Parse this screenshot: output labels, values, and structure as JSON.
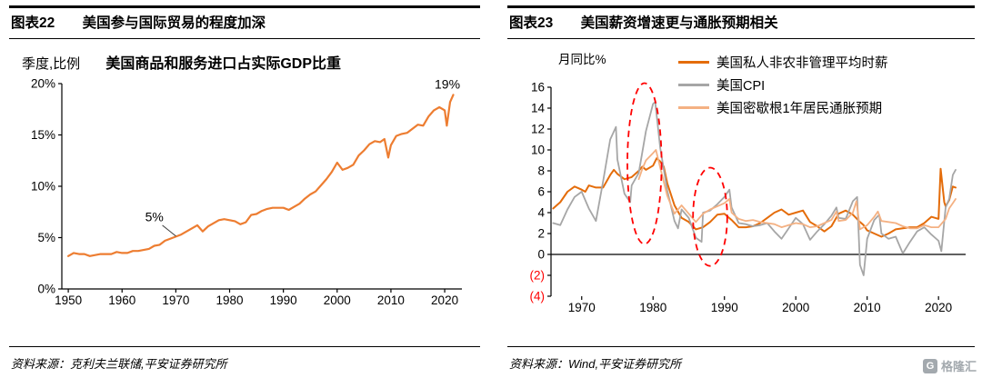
{
  "page": {
    "background": "#ffffff"
  },
  "panels": {
    "left": {
      "fig_no": "图表22",
      "title": "美国参与国际贸易的程度加深",
      "source": "资料来源：克利夫兰联储,平安证券研究所"
    },
    "right": {
      "fig_no": "图表23",
      "title": "美国薪资增速更与通胀预期相关",
      "source": "资料来源：Wind,平安证券研究所"
    }
  },
  "logo": {
    "icon": "G",
    "text": "格隆汇"
  },
  "chart_data": [
    {
      "type": "line",
      "title": "美国商品和服务进口占实际GDP比重",
      "unit_label": "季度,比例",
      "xlabel": "",
      "ylabel": "",
      "grid": false,
      "legend_position": "none",
      "xlim": [
        1948.8,
        2023.2
      ],
      "ylim": [
        0,
        20
      ],
      "x_axis_at": 0,
      "margin": {
        "l": 58,
        "r": 20,
        "t": 12,
        "b": 42
      },
      "xticks": [
        {
          "v": 1950,
          "label": "1950"
        },
        {
          "v": 1960,
          "label": "1960"
        },
        {
          "v": 1970,
          "label": "1970"
        },
        {
          "v": 1980,
          "label": "1980"
        },
        {
          "v": 1990,
          "label": "1990"
        },
        {
          "v": 2000,
          "label": "2000"
        },
        {
          "v": 2010,
          "label": "2010"
        },
        {
          "v": 2020,
          "label": "2020"
        }
      ],
      "yticks": [
        {
          "v": 0,
          "label": "0%"
        },
        {
          "v": 5,
          "label": "5%"
        },
        {
          "v": 10,
          "label": "10%"
        },
        {
          "v": 15,
          "label": "15%"
        },
        {
          "v": 20,
          "label": "20%"
        }
      ],
      "series": [
        {
          "name": "美国商品和服务进口占实际GDP比重",
          "color": "#ED7D31",
          "width": 2.2,
          "x": [
            1950,
            1951,
            1952,
            1953,
            1954,
            1955,
            1956,
            1957,
            1958,
            1959,
            1960,
            1961,
            1962,
            1963,
            1964,
            1965,
            1966,
            1967,
            1968,
            1969,
            1970,
            1971,
            1972,
            1973,
            1974,
            1975,
            1976,
            1977,
            1978,
            1979,
            1980,
            1981,
            1982,
            1983,
            1984,
            1985,
            1986,
            1987,
            1988,
            1989,
            1990,
            1991,
            1992,
            1993,
            1994,
            1995,
            1996,
            1997,
            1998,
            1999,
            2000,
            2001,
            2002,
            2003,
            2004,
            2005,
            2006,
            2007,
            2008,
            2008.8,
            2009.5,
            2010,
            2011,
            2012,
            2013,
            2014,
            2015,
            2016,
            2017,
            2018,
            2019,
            2020,
            2020.4,
            2021,
            2021.6
          ],
          "values": [
            3.2,
            3.5,
            3.4,
            3.4,
            3.2,
            3.3,
            3.4,
            3.4,
            3.4,
            3.6,
            3.5,
            3.5,
            3.7,
            3.7,
            3.8,
            3.9,
            4.2,
            4.3,
            4.7,
            4.9,
            5.1,
            5.3,
            5.6,
            5.9,
            6.2,
            5.6,
            6.1,
            6.4,
            6.7,
            6.8,
            6.7,
            6.6,
            6.3,
            6.5,
            7.2,
            7.3,
            7.6,
            7.8,
            7.9,
            7.9,
            7.9,
            7.7,
            8.0,
            8.3,
            8.8,
            9.2,
            9.5,
            10.1,
            10.7,
            11.4,
            12.3,
            11.6,
            11.8,
            12.1,
            13.0,
            13.5,
            14.1,
            14.4,
            14.3,
            14.6,
            12.8,
            14.0,
            14.9,
            15.1,
            15.2,
            15.6,
            16.0,
            15.9,
            16.8,
            17.4,
            17.7,
            17.4,
            15.9,
            18.2,
            18.9
          ]
        }
      ],
      "annotations": [
        {
          "text": "5%",
          "x": 1966,
          "y": 6.6,
          "anchor": "middle",
          "line": [
            1967.5,
            6.2,
            1970,
            5.15
          ]
        },
        {
          "text": "19%",
          "x": 2020.5,
          "y": 19.5,
          "anchor": "middle"
        }
      ]
    },
    {
      "type": "line",
      "title": "美国薪资增速更与通胀预期相关",
      "xlabel": "",
      "ylabel": "月同比%",
      "grid": false,
      "legend_position": "top-right",
      "xlim": [
        1965.7,
        2023.8
      ],
      "ylim": [
        -4,
        16
      ],
      "x_axis_at": 0,
      "margin": {
        "l": 48,
        "r": 10,
        "t": 47,
        "b": 31
      },
      "xticks": [
        {
          "v": 1970,
          "label": "1970"
        },
        {
          "v": 1980,
          "label": "1980"
        },
        {
          "v": 1990,
          "label": "1990"
        },
        {
          "v": 2000,
          "label": "2000"
        },
        {
          "v": 2010,
          "label": "2010"
        },
        {
          "v": 2020,
          "label": "2020"
        }
      ],
      "yticks": [
        {
          "v": 16,
          "label": "16"
        },
        {
          "v": 14,
          "label": "14"
        },
        {
          "v": 12,
          "label": "12"
        },
        {
          "v": 10,
          "label": "10"
        },
        {
          "v": 8,
          "label": "8"
        },
        {
          "v": 6,
          "label": "6"
        },
        {
          "v": 4,
          "label": "4"
        },
        {
          "v": 2,
          "label": "2"
        },
        {
          "v": 0,
          "label": "0"
        },
        {
          "v": -2,
          "label": "(2)",
          "color": "#FF0000"
        },
        {
          "v": -4,
          "label": "(4)",
          "color": "#FF0000"
        }
      ],
      "series": [
        {
          "name": "美国私人非农非管理平均时薪",
          "color": "#E46C0A",
          "width": 2,
          "x": [
            1966,
            1967,
            1968,
            1969,
            1970,
            1970.5,
            1971,
            1972,
            1973,
            1974,
            1974.5,
            1975,
            1976,
            1977,
            1978,
            1978.5,
            1979,
            1980,
            1980.5,
            1981,
            1981.5,
            1982,
            1983,
            1984,
            1985,
            1986,
            1987,
            1988,
            1989,
            1990,
            1991,
            1992,
            1993,
            1994,
            1995,
            1996,
            1997,
            1998,
            1999,
            2000,
            2001,
            2002,
            2003,
            2004,
            2005,
            2006,
            2007,
            2008,
            2009,
            2009.5,
            2010,
            2011,
            2012,
            2013,
            2014,
            2015,
            2016,
            2017,
            2018,
            2019,
            2020,
            2020.3,
            2020.8,
            2021,
            2021.5,
            2022,
            2022.4
          ],
          "values": [
            4.4,
            5.0,
            6.0,
            6.5,
            6.2,
            6.0,
            6.6,
            6.4,
            6.4,
            7.6,
            8.1,
            7.7,
            7.2,
            7.4,
            8.0,
            8.4,
            8.1,
            8.5,
            9.2,
            8.9,
            8.4,
            6.8,
            4.7,
            3.5,
            3.1,
            2.4,
            2.6,
            3.1,
            3.8,
            3.9,
            3.3,
            2.6,
            2.6,
            2.7,
            3.0,
            3.5,
            4.0,
            4.3,
            3.8,
            4.0,
            4.2,
            3.1,
            2.7,
            2.2,
            2.7,
            3.9,
            4.2,
            3.8,
            3.1,
            2.8,
            2.3,
            2.0,
            1.7,
            2.0,
            2.4,
            2.5,
            2.6,
            2.6,
            3.0,
            3.6,
            3.4,
            8.2,
            5.0,
            4.6,
            5.2,
            6.5,
            6.4
          ]
        },
        {
          "name": "美国CPI",
          "color": "#A6A6A6",
          "width": 1.8,
          "x": [
            1966,
            1967,
            1968,
            1969,
            1970,
            1971,
            1972,
            1973,
            1974,
            1974.8,
            1975,
            1976,
            1976.8,
            1977,
            1978,
            1979,
            1980,
            1980.3,
            1981,
            1982,
            1983,
            1983.5,
            1984,
            1985,
            1986,
            1986.8,
            1987,
            1988,
            1989,
            1990,
            1990.7,
            1991,
            1992,
            1993,
            1994,
            1995,
            1996,
            1997,
            1998,
            1999,
            2000,
            2001,
            2002,
            2003,
            2004,
            2005,
            2005.7,
            2006,
            2007,
            2008,
            2008.6,
            2009,
            2009.5,
            2010,
            2011,
            2011.7,
            2012,
            2013,
            2014,
            2015,
            2016,
            2017,
            2018,
            2019,
            2020,
            2020.4,
            2021,
            2021.5,
            2022,
            2022.4
          ],
          "values": [
            3.0,
            2.8,
            4.3,
            5.5,
            6.0,
            4.4,
            3.2,
            7.0,
            11.0,
            12.2,
            9.1,
            5.8,
            5.0,
            6.6,
            7.8,
            11.8,
            14.4,
            14.6,
            10.2,
            6.1,
            3.2,
            2.5,
            4.3,
            3.5,
            1.6,
            1.2,
            4.0,
            4.2,
            4.8,
            5.5,
            6.2,
            4.5,
            3.0,
            2.9,
            2.7,
            2.8,
            3.0,
            2.2,
            1.5,
            2.5,
            3.5,
            2.9,
            1.4,
            2.2,
            2.9,
            3.7,
            4.5,
            3.5,
            3.4,
            5.1,
            5.5,
            -1.0,
            -2.0,
            1.5,
            3.3,
            3.8,
            2.0,
            1.5,
            1.7,
            0.1,
            1.2,
            2.2,
            2.6,
            1.9,
            1.3,
            0.3,
            4.5,
            5.3,
            7.6,
            8.1
          ]
        },
        {
          "name": "美国密歇根1年居民通胀预期",
          "color": "#F4B183",
          "width": 1.8,
          "x": [
            1978,
            1978.5,
            1979,
            1980,
            1980.4,
            1981,
            1982,
            1983,
            1984,
            1985,
            1986,
            1987,
            1988,
            1989,
            1990,
            1990.7,
            1991,
            1992,
            1993,
            1994,
            1995,
            1996,
            1997,
            1998,
            1999,
            2000,
            2001,
            2002,
            2003,
            2004,
            2005,
            2005.7,
            2006,
            2007,
            2008,
            2008.5,
            2009,
            2010,
            2011,
            2011.5,
            2012,
            2013,
            2014,
            2015,
            2016,
            2017,
            2018,
            2019,
            2020,
            2021,
            2021.5,
            2022,
            2022.4
          ],
          "values": [
            7.2,
            8.2,
            9.0,
            9.7,
            10.0,
            8.3,
            5.6,
            3.9,
            4.7,
            3.9,
            3.1,
            3.9,
            4.3,
            4.6,
            4.9,
            5.3,
            4.0,
            3.4,
            3.2,
            3.3,
            3.1,
            3.0,
            2.9,
            2.6,
            2.8,
            3.0,
            2.9,
            2.6,
            2.7,
            3.0,
            3.3,
            4.1,
            3.2,
            3.3,
            4.0,
            5.1,
            2.4,
            2.8,
            3.6,
            4.1,
            3.2,
            3.1,
            3.0,
            2.7,
            2.5,
            2.5,
            2.8,
            2.6,
            2.6,
            3.4,
            4.4,
            4.9,
            5.3
          ]
        }
      ],
      "ellipses": [
        {
          "cx": 1978.8,
          "cy": 8.7,
          "rx": 2.4,
          "ry": 7.7,
          "color": "#FF0000"
        },
        {
          "cx": 1988.0,
          "cy": 3.6,
          "rx": 2.4,
          "ry": 4.7,
          "color": "#FF0000"
        }
      ]
    }
  ]
}
